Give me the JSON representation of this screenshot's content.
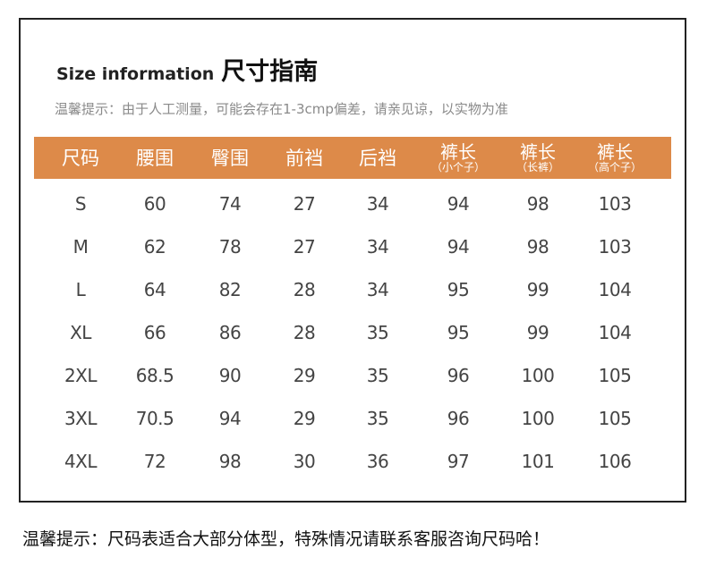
{
  "title": {
    "en": "Size information",
    "zh": "尺寸指南"
  },
  "tip": "温馨提示：由于人工测量，可能会存在1-3cmp偏差，请亲见谅，以实物为准",
  "header_color": "#dd8a49",
  "columns": [
    {
      "main": "尺码",
      "sub": ""
    },
    {
      "main": "腰围",
      "sub": ""
    },
    {
      "main": "臀围",
      "sub": ""
    },
    {
      "main": "前裆",
      "sub": ""
    },
    {
      "main": "后裆",
      "sub": ""
    },
    {
      "main": "裤长",
      "sub": "（小个子）"
    },
    {
      "main": "裤长",
      "sub": "（长裤）"
    },
    {
      "main": "裤长",
      "sub": "（高个子）"
    }
  ],
  "rows": [
    [
      "S",
      "60",
      "74",
      "27",
      "34",
      "94",
      "98",
      "103"
    ],
    [
      "M",
      "62",
      "78",
      "27",
      "34",
      "94",
      "98",
      "103"
    ],
    [
      "L",
      "64",
      "82",
      "28",
      "34",
      "95",
      "99",
      "104"
    ],
    [
      "XL",
      "66",
      "86",
      "28",
      "35",
      "95",
      "99",
      "104"
    ],
    [
      "2XL",
      "68.5",
      "90",
      "29",
      "35",
      "96",
      "100",
      "105"
    ],
    [
      "3XL",
      "70.5",
      "94",
      "29",
      "35",
      "96",
      "100",
      "105"
    ],
    [
      "4XL",
      "72",
      "98",
      "30",
      "36",
      "97",
      "101",
      "106"
    ]
  ],
  "footer": "温馨提示：尺码表适合大部分体型，特殊情况请联系客服咨询尺码哈！"
}
